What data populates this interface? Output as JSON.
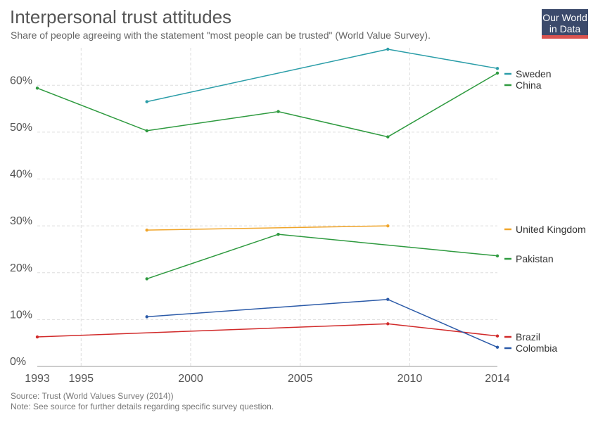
{
  "chart_data": {
    "type": "line",
    "title": "Interpersonal trust attitudes",
    "subtitle": "Share of people agreeing with the statement \"most people can be trusted\" (World Value Survey).",
    "xlabel": "",
    "ylabel": "",
    "x_ticks": [
      "1993",
      "1995",
      "2000",
      "2005",
      "2010",
      "2014"
    ],
    "y_ticks": [
      "0%",
      "10%",
      "20%",
      "30%",
      "40%",
      "50%",
      "60%"
    ],
    "xlim": [
      1993,
      2014
    ],
    "ylim": [
      0,
      68
    ],
    "grid": true,
    "legend_placement": "right",
    "series": [
      {
        "name": "Sweden",
        "color": "#2a9da8",
        "points": [
          [
            1998,
            56.5
          ],
          [
            2009,
            67.7
          ],
          [
            2014,
            63.6
          ]
        ]
      },
      {
        "name": "China",
        "color": "#2e9a3f",
        "points": [
          [
            1993,
            59.4
          ],
          [
            1998,
            50.3
          ],
          [
            2004,
            54.4
          ],
          [
            2009,
            49.0
          ],
          [
            2014,
            62.6
          ]
        ]
      },
      {
        "name": "United Kingdom",
        "color": "#f0a52a",
        "points": [
          [
            1998,
            29.1
          ],
          [
            2009,
            30.0
          ]
        ]
      },
      {
        "name": "Pakistan",
        "color": "#2e9a3f",
        "points": [
          [
            1998,
            18.7
          ],
          [
            2004,
            28.2
          ],
          [
            2014,
            23.6
          ]
        ]
      },
      {
        "name": "Brazil",
        "color": "#d12a2a",
        "points": [
          [
            1993,
            6.3
          ],
          [
            2009,
            9.1
          ],
          [
            2014,
            6.5
          ]
        ]
      },
      {
        "name": "Colombia",
        "color": "#2b5aa8",
        "points": [
          [
            1998,
            10.6
          ],
          [
            2009,
            14.3
          ],
          [
            2014,
            4.1
          ]
        ]
      }
    ]
  },
  "logo": {
    "line1": "Our World",
    "line2": "in Data",
    "bg": "#3b4a6b",
    "accent": "#d9534f"
  },
  "footer": {
    "source": "Source: Trust (World Values Survey (2014))",
    "note": "Note: See source for further details regarding specific survey question."
  }
}
